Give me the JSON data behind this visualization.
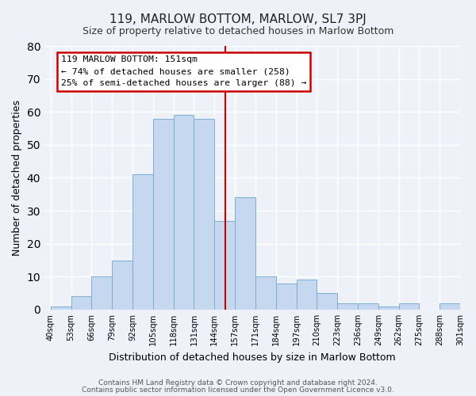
{
  "title": "119, MARLOW BOTTOM, MARLOW, SL7 3PJ",
  "subtitle": "Size of property relative to detached houses in Marlow Bottom",
  "xlabel": "Distribution of detached houses by size in Marlow Bottom",
  "ylabel": "Number of detached properties",
  "bar_labels": [
    "40sqm",
    "53sqm",
    "66sqm",
    "79sqm",
    "92sqm",
    "105sqm",
    "118sqm",
    "131sqm",
    "144sqm",
    "157sqm",
    "171sqm",
    "184sqm",
    "197sqm",
    "210sqm",
    "223sqm",
    "236sqm",
    "249sqm",
    "262sqm",
    "275sqm",
    "288sqm",
    "301sqm"
  ],
  "bar_values": [
    1,
    4,
    10,
    15,
    41,
    58,
    59,
    58,
    27,
    34,
    10,
    8,
    9,
    5,
    2,
    2,
    1,
    2,
    0,
    2
  ],
  "bar_color": "#c5d8f0",
  "bar_edge_color": "#7baed4",
  "annotation_title": "119 MARLOW BOTTOM: 151sqm",
  "annotation_line1": "← 74% of detached houses are smaller (258)",
  "annotation_line2": "25% of semi-detached houses are larger (88) →",
  "annotation_box_color": "#ffffff",
  "annotation_box_edge": "#cc0000",
  "ylim": [
    0,
    80
  ],
  "footer1": "Contains HM Land Registry data © Crown copyright and database right 2024.",
  "footer2": "Contains public sector information licensed under the Open Government Licence v3.0.",
  "bg_color": "#eef2f8",
  "grid_color": "#ffffff",
  "vline_color": "#cc0000",
  "title_fontsize": 11,
  "subtitle_fontsize": 9
}
